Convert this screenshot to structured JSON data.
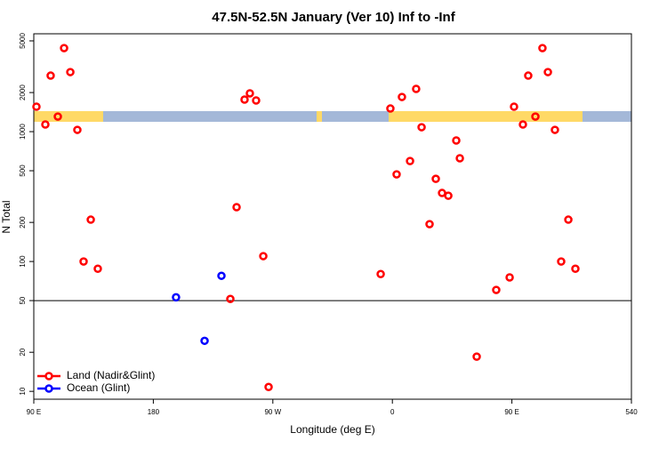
{
  "chart_data": {
    "type": "scatter",
    "title": "47.5N-52.5N January (Ver 10)   Inf to -Inf",
    "x_label": "Longitude (deg E)",
    "y_label": "N Total",
    "log_y": true,
    "xlim": [
      90,
      540
    ],
    "ylim": [
      8.7,
      5670
    ],
    "xticks": [
      {
        "value": 90,
        "label": "90 E"
      },
      180,
      {
        "value": 270,
        "label": "90 W"
      },
      {
        "value": 360,
        "label": "0"
      },
      {
        "value": 450,
        "label": "90 E"
      },
      540
    ],
    "yticks": [
      10,
      20,
      50,
      100,
      200,
      500,
      1000,
      2000,
      5000
    ],
    "reference_line": 50,
    "legend": "bottom-left",
    "series": [
      {
        "name": "Land (Nadir&Glint)",
        "color": "#ff0000",
        "x": [
          92,
          98.7,
          102.7,
          108.1,
          112.8,
          117.5,
          122.8,
          127.5,
          132.9,
          138.2,
          238,
          242.7,
          248.7,
          252.7,
          257.4,
          262.8,
          266.8,
          351.2,
          358.5,
          363.2,
          367.2,
          373.3,
          377.9,
          382,
          388,
          392.7,
          397.4,
          402.1,
          408.1,
          410.8,
          423.5,
          438.2,
          448.3,
          451.6,
          458.3,
          462.3,
          467.7,
          473,
          477.1,
          482.4,
          487.1,
          492.5,
          497.8
        ],
        "values": [
          1556,
          1135,
          2700,
          1307,
          4400,
          2875,
          1032,
          100,
          210,
          88,
          51.5,
          262,
          1766,
          1973,
          1738,
          110,
          10.8,
          80,
          1507,
          469,
          1849,
          594,
          2134,
          1082,
          194,
          433,
          337,
          321,
          855,
          624,
          18.5,
          60.4,
          75.4,
          1556,
          1135,
          2700,
          1307,
          4400,
          2875,
          1032,
          100,
          210,
          88
        ]
      },
      {
        "name": "Ocean (Glint)",
        "color": "#0000ff",
        "x": [
          197.1,
          218.6,
          231.3
        ],
        "values": [
          53,
          24.5,
          77.6
        ]
      }
    ]
  }
}
